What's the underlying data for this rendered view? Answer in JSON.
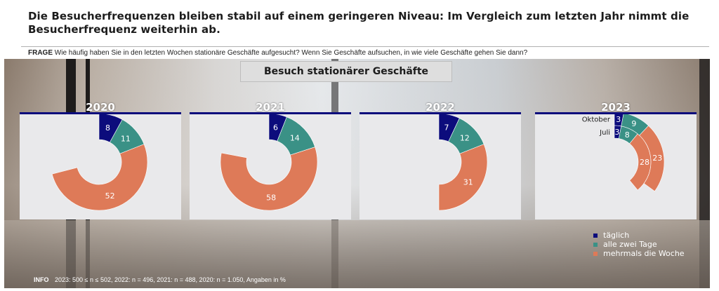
{
  "headline": "Die Besucherfrequenzen bleiben stabil auf einem geringeren Niveau: Im Vergleich zum letzten Jahr nimmt die Besucherfrequenz weiterhin ab.",
  "question": {
    "label": "FRAGE",
    "text": "Wie häufig haben Sie in den letzten Wochen stationäre Geschäfte aufgesucht? Wenn Sie Geschäfte aufsuchen, in wie viele Geschäfte gehen Sie dann?"
  },
  "info": {
    "label": "INFO",
    "text": "2023: 500 ≤ n ≤ 502, 2022: n = 496, 2021: n = 488, 2020: n = 1.050, Angaben in %"
  },
  "colors": {
    "täglich": "#0c0c7c",
    "alle zwei Tage": "#3a9186",
    "mehrmals die Woche": "#de7a58"
  },
  "chart_data": {
    "type": "radial-bar",
    "title": "Besuch stationärer Geschäfte",
    "unit": "%",
    "legend": [
      "täglich",
      "alle zwei Tage",
      "mehrmals die Woche"
    ],
    "legend_position": "bottom-right",
    "panels": [
      {
        "year": "2020",
        "rings": [
          {
            "label": "",
            "values": [
              8,
              11,
              52
            ]
          }
        ]
      },
      {
        "year": "2021",
        "rings": [
          {
            "label": "",
            "values": [
              6,
              14,
              58
            ]
          }
        ]
      },
      {
        "year": "2022",
        "rings": [
          {
            "label": "",
            "values": [
              7,
              12,
              31
            ]
          }
        ]
      },
      {
        "year": "2023",
        "rings": [
          {
            "label": "Oktober",
            "values": [
              3,
              9,
              23
            ]
          },
          {
            "label": "Juli",
            "values": [
              3,
              8,
              28
            ]
          }
        ]
      }
    ]
  }
}
